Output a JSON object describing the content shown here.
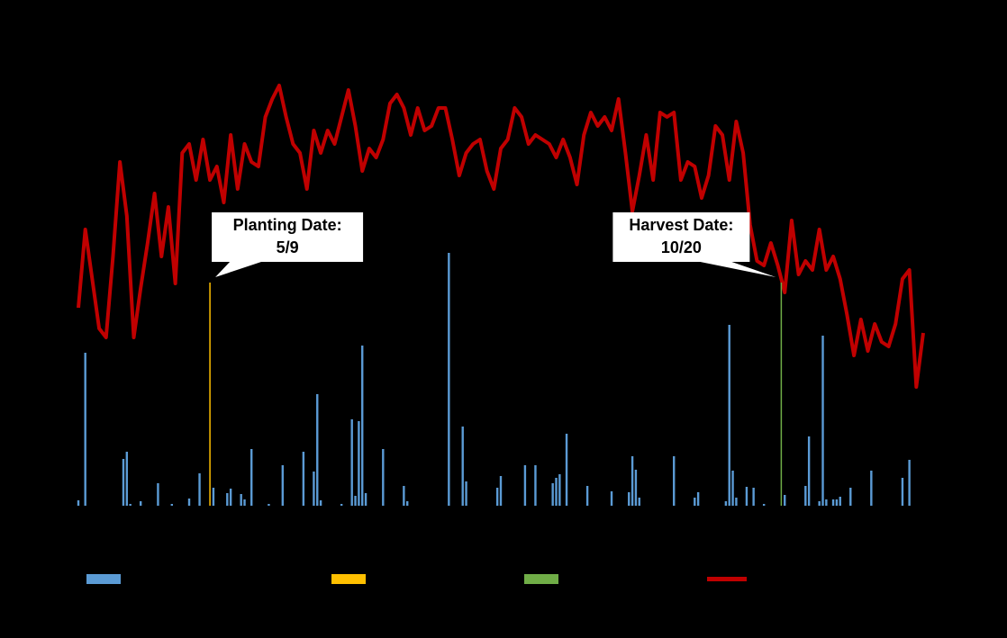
{
  "chart_data": {
    "type": "combo",
    "xlim": [
      0,
      244
    ],
    "ylim": [
      0,
      100
    ],
    "y2lim": [
      0,
      100
    ],
    "series": [
      {
        "type": "bar",
        "color": "#5b9bd5",
        "x": [
          0,
          2,
          13,
          14,
          15,
          18,
          23,
          27,
          32,
          35,
          39,
          43,
          44,
          47,
          48,
          50,
          55,
          59,
          65,
          68,
          69,
          70,
          76,
          79,
          80,
          81,
          82,
          83,
          88,
          94,
          95,
          107,
          111,
          112,
          121,
          122,
          129,
          132,
          137,
          138,
          139,
          141,
          147,
          154,
          159,
          160,
          161,
          162,
          172,
          178,
          179,
          187,
          188,
          189,
          190,
          193,
          195,
          198,
          204,
          210,
          211,
          214,
          215,
          216,
          218,
          219,
          220,
          223,
          229,
          238,
          240
        ],
        "values": [
          1.2,
          34,
          10.4,
          12,
          0.4,
          1,
          5,
          0.4,
          1.6,
          7.2,
          4,
          2.8,
          3.8,
          2.6,
          1.4,
          12.6,
          0.4,
          9,
          12,
          7.6,
          24.8,
          1.2,
          0.4,
          19.2,
          2.2,
          18.8,
          35.6,
          2.8,
          12.6,
          4.4,
          1,
          56.2,
          17.6,
          5.4,
          4,
          6.6,
          9,
          9,
          5,
          6.2,
          7,
          16,
          4.4,
          3.2,
          3,
          11,
          8,
          1.8,
          11,
          1.8,
          3,
          1,
          40.2,
          7.8,
          1.8,
          4.2,
          4,
          0.4,
          2.4,
          4.4,
          15.4,
          1,
          37.8,
          1.4,
          1.4,
          1.4,
          2,
          4,
          7.8,
          6.2,
          10.2
        ]
      },
      {
        "type": "line",
        "color": "#c00000",
        "axis": "y2",
        "x": [
          0,
          2,
          4,
          6,
          8,
          10,
          12,
          14,
          16,
          18,
          20,
          22,
          24,
          26,
          28,
          30,
          32,
          34,
          36,
          38,
          40,
          42,
          44,
          46,
          48,
          50,
          52,
          54,
          56,
          58,
          60,
          62,
          64,
          66,
          68,
          70,
          72,
          74,
          76,
          78,
          80,
          82,
          84,
          86,
          88,
          90,
          92,
          94,
          96,
          98,
          100,
          102,
          104,
          106,
          108,
          110,
          112,
          114,
          116,
          118,
          120,
          122,
          124,
          126,
          128,
          130,
          132,
          134,
          136,
          138,
          140,
          142,
          144,
          146,
          148,
          150,
          152,
          154,
          156,
          158,
          160,
          162,
          164,
          166,
          168,
          170,
          172,
          174,
          176,
          178,
          180,
          182,
          184,
          186,
          188,
          190,
          192,
          194,
          196,
          198,
          200,
          202,
          204,
          206,
          208,
          210,
          212,
          214,
          216,
          218,
          220,
          222,
          224,
          226,
          228,
          230,
          232,
          234,
          236,
          238,
          240,
          242,
          244
        ],
        "values": [
          44,
          61.4,
          50.4,
          39.4,
          37.4,
          55.4,
          76.4,
          64.4,
          37.4,
          48.4,
          58.4,
          69.4,
          55.4,
          66.4,
          49.4,
          78.4,
          80.4,
          72.4,
          81.4,
          72.4,
          75.4,
          67.4,
          82.4,
          70.4,
          80.4,
          76.4,
          75.4,
          86.4,
          90.4,
          93.4,
          86.4,
          80.4,
          78.4,
          70.4,
          83.4,
          78.4,
          83.4,
          80.4,
          86.4,
          92.4,
          84.4,
          74.4,
          79.4,
          77.4,
          81.4,
          89.4,
          91.4,
          88.4,
          82.4,
          88.4,
          83.4,
          84.4,
          88.4,
          88.4,
          81.4,
          73.4,
          78.4,
          80.4,
          81.4,
          74.4,
          70.4,
          79.4,
          81.4,
          88.4,
          86.4,
          80.4,
          82.4,
          81.4,
          80.4,
          77.4,
          81.4,
          77.4,
          71.4,
          82.4,
          87.4,
          84.4,
          86.4,
          83.4,
          90.4,
          78.4,
          65.4,
          73.4,
          82.4,
          72.4,
          87.4,
          86.4,
          87.4,
          72.4,
          76.4,
          75.4,
          68.4,
          73.4,
          84.4,
          82.4,
          72.4,
          85.4,
          78.4,
          62.4,
          54.4,
          53.4,
          58.4,
          53.4,
          47.4,
          63.4,
          51.4,
          54.4,
          52.4,
          61.4,
          52.4,
          55.4,
          50.4,
          42.4,
          33.4,
          41.4,
          34.4,
          40.4,
          36.4,
          35.4,
          40.4,
          50.4,
          52.4,
          26.4,
          38.4
        ]
      }
    ],
    "annotations": [
      {
        "lines": [
          "Planting Date:",
          "5/9"
        ],
        "x": 38,
        "value": 49.6,
        "color": "#ffc000"
      },
      {
        "lines": [
          "Harvest Date:",
          "10/20"
        ],
        "x": 203,
        "value": 49.6,
        "color": "#70ad47"
      }
    ]
  }
}
